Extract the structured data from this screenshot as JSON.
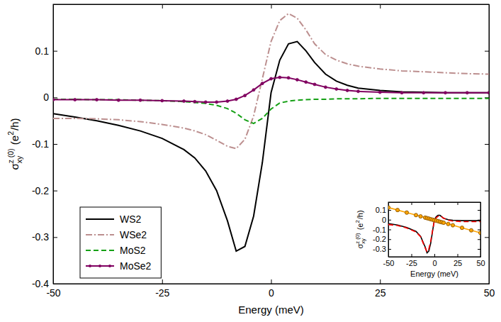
{
  "chart_data": [
    {
      "type": "line",
      "xlabel": "Energy (meV)",
      "ylabel": [
        "σ",
        "z (0)",
        "xy",
        " (e",
        "2",
        "/h)"
      ],
      "xlim": [
        -50,
        50
      ],
      "xticks": [
        -50,
        -25,
        0,
        25,
        50
      ],
      "ylim": [
        -0.4,
        0.2
      ],
      "yticks": [
        -0.4,
        -0.3,
        -0.2,
        -0.1,
        0,
        0.1
      ],
      "legend": "lower left",
      "x": [
        -50,
        -45,
        -40,
        -35,
        -30,
        -25,
        -20,
        -17.5,
        -15,
        -12.5,
        -10,
        -8,
        -6,
        -4,
        -2,
        0,
        2,
        4,
        6,
        8,
        10,
        12.5,
        15,
        17.5,
        20,
        25,
        30,
        35,
        40,
        45,
        50
      ],
      "series": [
        {
          "name": "WS2",
          "color": "#000000",
          "line_style": "solid",
          "values": [
            -0.035,
            -0.042,
            -0.05,
            -0.06,
            -0.072,
            -0.088,
            -0.112,
            -0.13,
            -0.158,
            -0.2,
            -0.265,
            -0.33,
            -0.32,
            -0.255,
            -0.14,
            0.01,
            0.08,
            0.115,
            0.12,
            0.1,
            0.075,
            0.05,
            0.035,
            0.026,
            0.02,
            0.015,
            0.012,
            0.011,
            0.01,
            0.01,
            0.01
          ]
        },
        {
          "name": "WSe2",
          "color": "#bc8f8f",
          "line_style": "dashdot",
          "values": [
            -0.045,
            -0.045,
            -0.046,
            -0.048,
            -0.052,
            -0.058,
            -0.066,
            -0.072,
            -0.08,
            -0.092,
            -0.105,
            -0.11,
            -0.09,
            -0.04,
            0.04,
            0.12,
            0.165,
            0.18,
            0.17,
            0.145,
            0.115,
            0.092,
            0.08,
            0.072,
            0.067,
            0.061,
            0.057,
            0.055,
            0.053,
            0.051,
            0.05
          ]
        },
        {
          "name": "MoS2",
          "color": "#15a015",
          "line_style": "dashed",
          "values": [
            -0.004,
            -0.004,
            -0.005,
            -0.005,
            -0.006,
            -0.007,
            -0.009,
            -0.011,
            -0.013,
            -0.017,
            -0.024,
            -0.034,
            -0.048,
            -0.056,
            -0.045,
            -0.025,
            -0.012,
            -0.008,
            -0.006,
            -0.005,
            -0.004,
            -0.004,
            -0.003,
            -0.003,
            -0.003,
            -0.002,
            -0.002,
            -0.002,
            -0.002,
            -0.002,
            -0.002
          ]
        },
        {
          "name": "MoSe2",
          "color": "#800060",
          "line_style": "solid",
          "marker": "circle",
          "values": [
            -0.005,
            -0.005,
            -0.005,
            -0.006,
            -0.006,
            -0.007,
            -0.008,
            -0.009,
            -0.01,
            -0.01,
            -0.008,
            -0.004,
            0.004,
            0.016,
            0.03,
            0.04,
            0.043,
            0.042,
            0.038,
            0.033,
            0.028,
            0.022,
            0.018,
            0.015,
            0.013,
            0.011,
            0.01,
            0.01,
            0.01,
            0.01,
            0.01
          ]
        }
      ]
    },
    {
      "type": "line",
      "xlabel": "Energy (meV)",
      "ylabel": [
        "σ",
        "z (0)",
        "xy",
        " (e",
        "2",
        "/h)"
      ],
      "xlim": [
        -50,
        50
      ],
      "xticks": [
        -50,
        -25,
        0,
        25,
        50
      ],
      "ylim": [
        -0.38,
        0.18
      ],
      "yticks": [
        -0.3,
        -0.2,
        -0.1,
        0,
        0.1
      ],
      "x": [
        -50,
        -40,
        -30,
        -20,
        -15,
        -10,
        -8,
        -6,
        -4,
        -2,
        0,
        2,
        4,
        6,
        8,
        10,
        15,
        20,
        30,
        40,
        50
      ],
      "series": [
        {
          "color": "#000000",
          "line_style": "solid",
          "values": [
            -0.04,
            -0.055,
            -0.08,
            -0.12,
            -0.17,
            -0.28,
            -0.34,
            -0.32,
            -0.24,
            -0.12,
            0.0,
            0.03,
            0.045,
            0.045,
            0.03,
            0.015,
            0.0,
            -0.005,
            -0.01,
            -0.01,
            -0.01
          ]
        },
        {
          "color": "#ff0000",
          "line_style": "dashed",
          "values": [
            -0.05,
            -0.06,
            -0.085,
            -0.125,
            -0.175,
            -0.29,
            -0.33,
            -0.3,
            -0.22,
            -0.11,
            -0.01,
            0.02,
            0.035,
            0.04,
            0.03,
            0.015,
            -0.005,
            -0.015,
            -0.02,
            -0.02,
            -0.02
          ]
        },
        {
          "color": "#ffa500",
          "line_style": "solid",
          "marker": "circle",
          "values": [
            0.125,
            0.099,
            0.073,
            0.047,
            0.034,
            0.021,
            0.016,
            0.011,
            0.005,
            0.0,
            -0.005,
            -0.01,
            -0.015,
            -0.021,
            -0.026,
            -0.031,
            -0.044,
            -0.057,
            -0.083,
            -0.109,
            -0.135
          ]
        }
      ]
    }
  ]
}
